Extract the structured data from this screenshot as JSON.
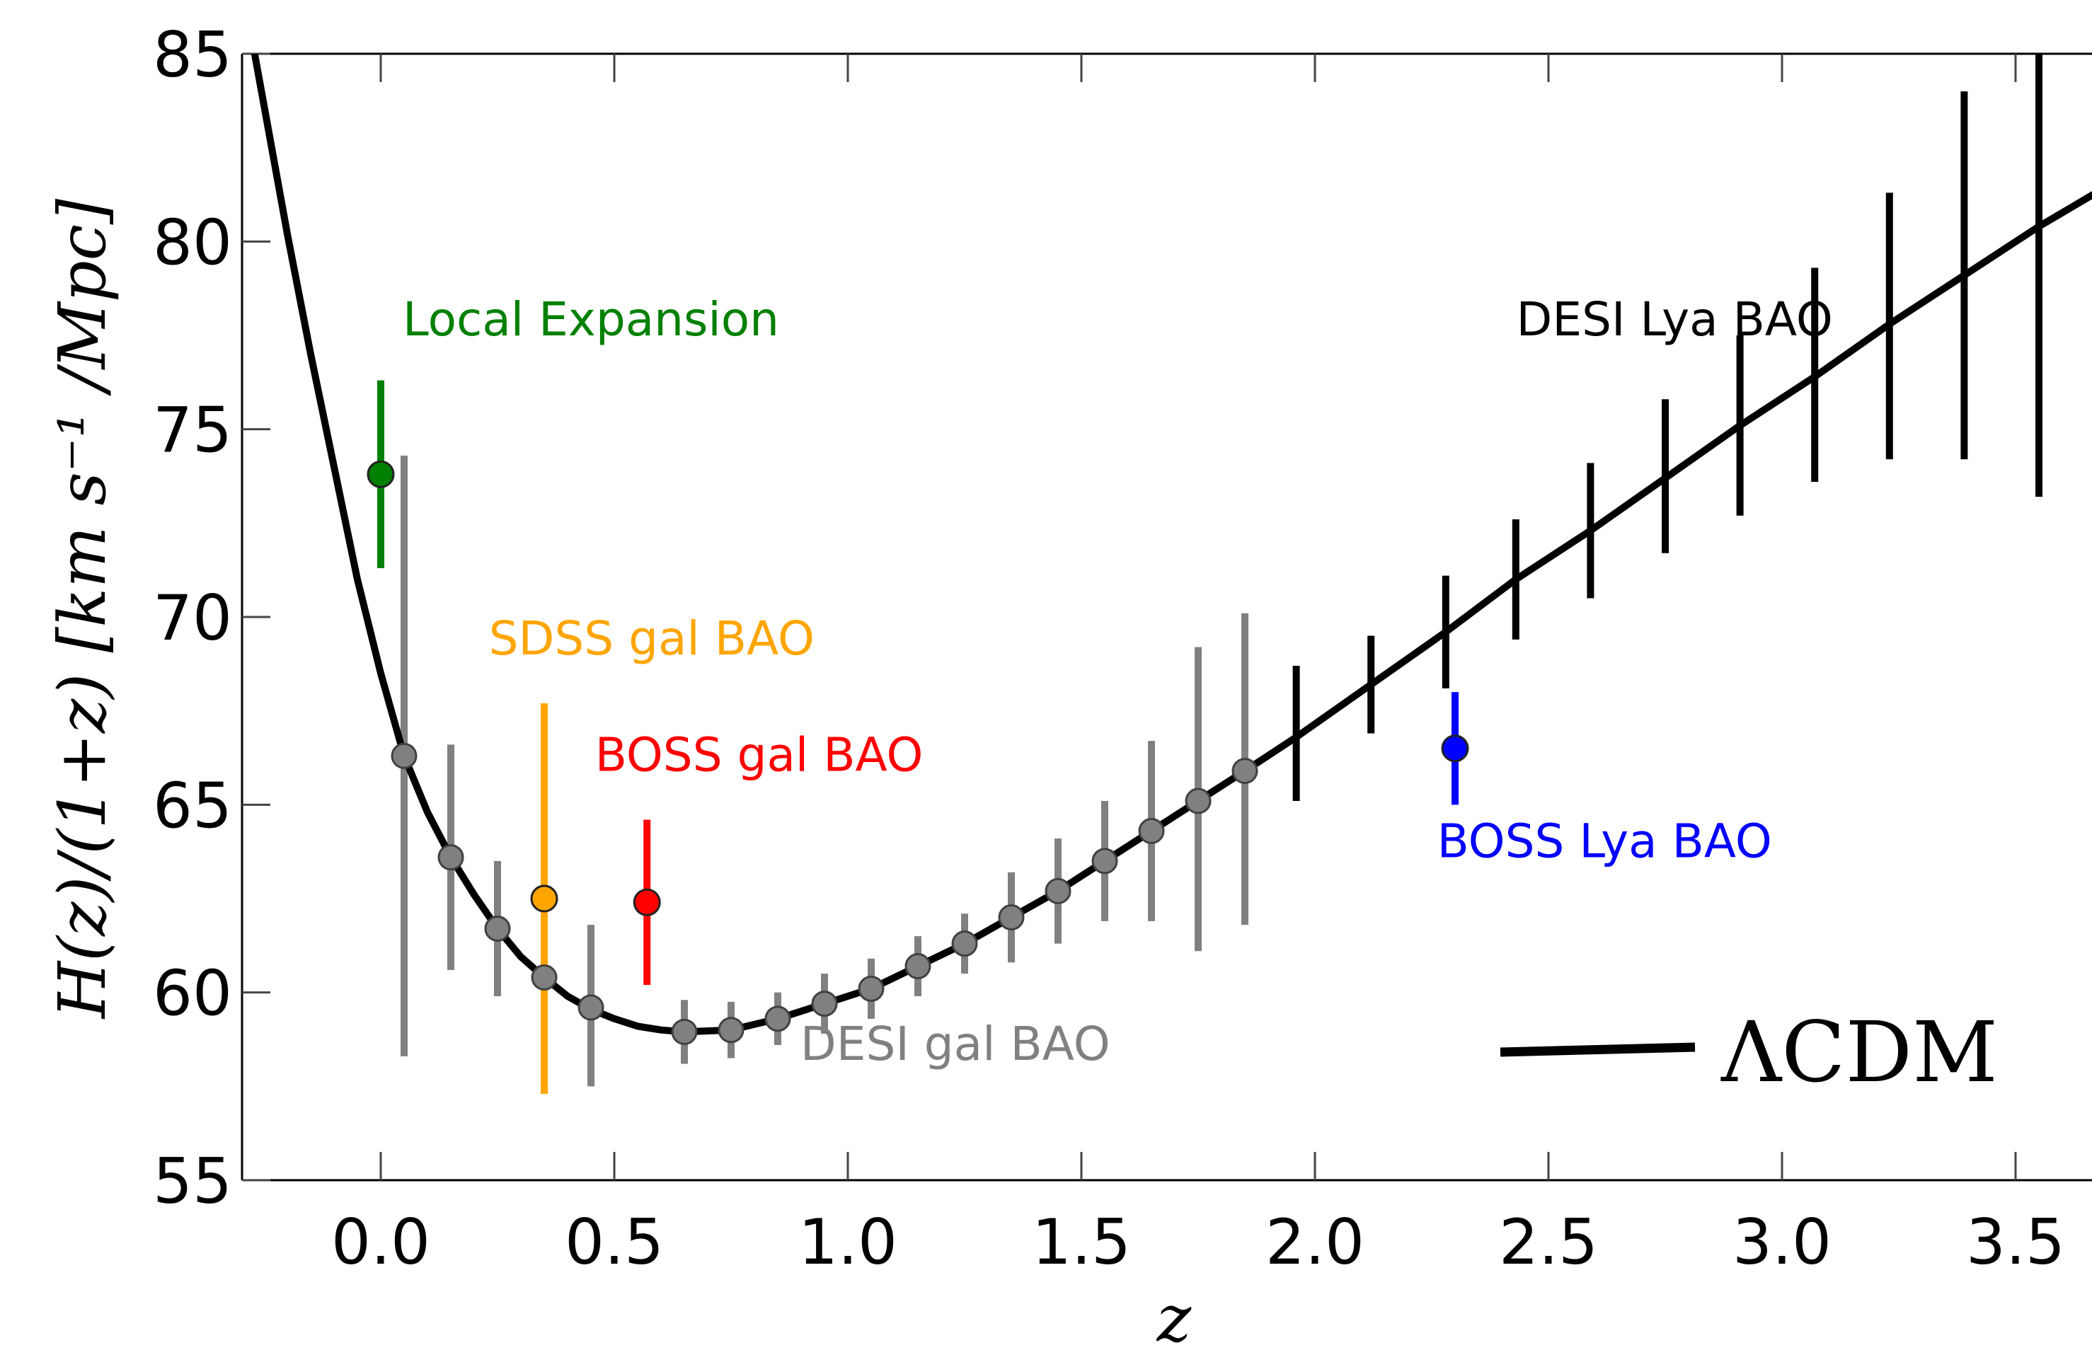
{
  "chart_data": {
    "type": "scatter",
    "xlabel": "z",
    "ylabel": "H(z)/(1+z) [km s⁻¹ /Mpc]",
    "xlim": [
      -0.3,
      3.7
    ],
    "ylim": [
      55,
      85
    ],
    "x_ticks": [
      "0.0",
      "0.5",
      "1.0",
      "1.5",
      "2.0",
      "2.5",
      "3.0",
      "3.5"
    ],
    "y_ticks": [
      "55",
      "60",
      "65",
      "70",
      "75",
      "80",
      "85"
    ],
    "grid": false,
    "series": [
      {
        "name": "Local Expansion",
        "color": "#008000",
        "points": [
          {
            "x": 0.0,
            "y": 73.8,
            "lo": 71.3,
            "hi": 76.3
          }
        ]
      },
      {
        "name": "SDSS gal BAO",
        "color": "#ffa500",
        "points": [
          {
            "x": 0.35,
            "y": 62.5,
            "lo": 57.3,
            "hi": 67.7
          }
        ]
      },
      {
        "name": "BOSS gal BAO",
        "color": "#ff0000",
        "points": [
          {
            "x": 0.57,
            "y": 62.4,
            "lo": 60.2,
            "hi": 64.6
          }
        ]
      },
      {
        "name": "BOSS Lya BAO",
        "color": "#0000ff",
        "points": [
          {
            "x": 2.3,
            "y": 66.5,
            "lo": 65.0,
            "hi": 68.0
          }
        ]
      },
      {
        "name": "DESI gal BAO",
        "color": "#808080",
        "points": [
          {
            "x": 0.05,
            "y": 66.3,
            "lo": 58.3,
            "hi": 74.3
          },
          {
            "x": 0.15,
            "y": 63.6,
            "lo": 60.6,
            "hi": 66.6
          },
          {
            "x": 0.25,
            "y": 61.7,
            "lo": 59.9,
            "hi": 63.5
          },
          {
            "x": 0.35,
            "y": 60.4,
            "lo": 58.9,
            "hi": 61.9
          },
          {
            "x": 0.45,
            "y": 59.6,
            "lo": 57.5,
            "hi": 61.8
          },
          {
            "x": 0.65,
            "y": 58.95,
            "lo": 58.1,
            "hi": 59.8
          },
          {
            "x": 0.75,
            "y": 59.0,
            "lo": 58.25,
            "hi": 59.75
          },
          {
            "x": 0.85,
            "y": 59.3,
            "lo": 58.6,
            "hi": 60.0
          },
          {
            "x": 0.95,
            "y": 59.7,
            "lo": 58.9,
            "hi": 60.5
          },
          {
            "x": 1.05,
            "y": 60.1,
            "lo": 59.3,
            "hi": 60.9
          },
          {
            "x": 1.15,
            "y": 60.7,
            "lo": 59.9,
            "hi": 61.5
          },
          {
            "x": 1.25,
            "y": 61.3,
            "lo": 60.5,
            "hi": 62.1
          },
          {
            "x": 1.35,
            "y": 62.0,
            "lo": 60.8,
            "hi": 63.2
          },
          {
            "x": 1.45,
            "y": 62.7,
            "lo": 61.3,
            "hi": 64.1
          },
          {
            "x": 1.55,
            "y": 63.5,
            "lo": 61.9,
            "hi": 65.1
          },
          {
            "x": 1.65,
            "y": 64.3,
            "lo": 61.9,
            "hi": 66.7
          },
          {
            "x": 1.75,
            "y": 65.1,
            "lo": 61.1,
            "hi": 69.2
          },
          {
            "x": 1.85,
            "y": 65.9,
            "lo": 61.8,
            "hi": 70.1
          }
        ]
      },
      {
        "name": "DESI Lya BAO",
        "color": "#000000",
        "points": [
          {
            "x": 1.96,
            "y": 66.8,
            "lo": 65.1,
            "hi": 68.7
          },
          {
            "x": 2.12,
            "y": 68.2,
            "lo": 66.9,
            "hi": 69.5
          },
          {
            "x": 2.28,
            "y": 69.6,
            "lo": 68.1,
            "hi": 71.1
          },
          {
            "x": 2.43,
            "y": 71.0,
            "lo": 69.4,
            "hi": 72.6
          },
          {
            "x": 2.59,
            "y": 72.3,
            "lo": 70.5,
            "hi": 74.1
          },
          {
            "x": 2.75,
            "y": 73.7,
            "lo": 71.7,
            "hi": 75.8
          },
          {
            "x": 2.91,
            "y": 75.1,
            "lo": 72.7,
            "hi": 77.5
          },
          {
            "x": 3.07,
            "y": 76.4,
            "lo": 73.6,
            "hi": 79.3
          },
          {
            "x": 3.23,
            "y": 77.8,
            "lo": 74.2,
            "hi": 81.3
          },
          {
            "x": 3.39,
            "y": 79.1,
            "lo": 74.2,
            "hi": 84.0
          },
          {
            "x": 3.55,
            "y": 80.4,
            "lo": 73.2,
            "hi": 87.5
          }
        ]
      }
    ],
    "model_curve": {
      "name": "ΛCDM",
      "color": "#000000",
      "x": [
        -0.27,
        -0.2,
        -0.15,
        -0.1,
        -0.05,
        0.0,
        0.05,
        0.1,
        0.15,
        0.2,
        0.25,
        0.3,
        0.35,
        0.4,
        0.45,
        0.5,
        0.55,
        0.6,
        0.65,
        0.75,
        0.85,
        0.95,
        1.05,
        1.15,
        1.25,
        1.35,
        1.45,
        1.55,
        1.65,
        1.75,
        1.85,
        1.96,
        2.12,
        2.28,
        2.43,
        2.59,
        2.75,
        2.91,
        3.07,
        3.23,
        3.39,
        3.55,
        3.7
      ],
      "y": [
        85.0,
        80.2,
        77.0,
        74.0,
        71.0,
        68.5,
        66.3,
        64.8,
        63.6,
        62.6,
        61.7,
        60.95,
        60.4,
        59.9,
        59.55,
        59.3,
        59.1,
        59.0,
        58.95,
        59.0,
        59.3,
        59.7,
        60.1,
        60.7,
        61.3,
        62.0,
        62.7,
        63.5,
        64.3,
        65.1,
        65.9,
        66.8,
        68.2,
        69.6,
        71.0,
        72.3,
        73.7,
        75.1,
        76.4,
        77.8,
        79.1,
        80.4,
        81.5
      ]
    },
    "annotations": [
      {
        "text": "Local Expansion",
        "color": "#008000",
        "x": 0.45,
        "y": 77.5
      },
      {
        "text": "SDSS gal BAO",
        "color": "#ffa500",
        "x": 0.58,
        "y": 69.0
      },
      {
        "text": "BOSS gal BAO",
        "color": "#ff0000",
        "x": 0.81,
        "y": 65.9
      },
      {
        "text": "DESI gal BAO",
        "color": "#808080",
        "x": 1.23,
        "y": 58.2
      },
      {
        "text": "DESI Lya BAO",
        "color": "#000000",
        "x": 2.77,
        "y": 77.5
      },
      {
        "text": "BOSS Lya BAO",
        "color": "#0000ff",
        "x": 2.62,
        "y": 63.6
      }
    ],
    "legend": {
      "position": "bottom-right",
      "label": "ΛCDM"
    }
  }
}
